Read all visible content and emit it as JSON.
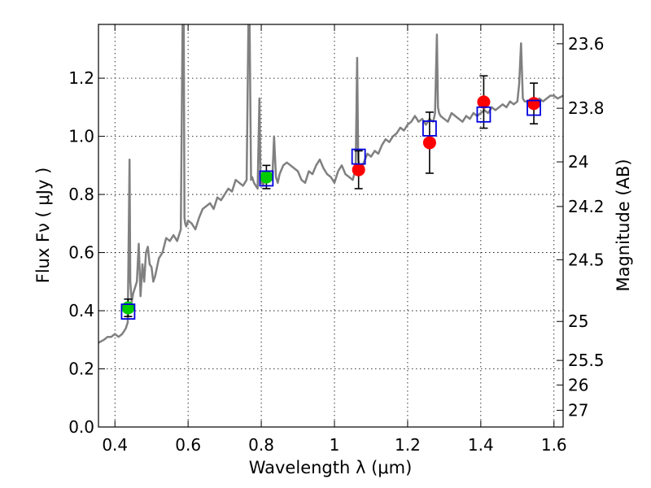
{
  "chart_data": {
    "type": "scatter",
    "xlabel": "Wavelength  λ (μm)",
    "ylabel": "Flux  Fν  ( μJy )",
    "y2label": "Magnitude (AB)",
    "xlim": [
      0.355,
      1.625
    ],
    "ylim": [
      0.0,
      1.385
    ],
    "grid": true,
    "x_ticks": [
      {
        "value": 0.4,
        "label": "0.4"
      },
      {
        "value": 0.6,
        "label": "0.6"
      },
      {
        "value": 0.8,
        "label": "0.8"
      },
      {
        "value": 1.0,
        "label": "1"
      },
      {
        "value": 1.2,
        "label": "1.2"
      },
      {
        "value": 1.4,
        "label": "1.4"
      },
      {
        "value": 1.6,
        "label": "1.6"
      }
    ],
    "y_ticks": [
      {
        "value": 0.0,
        "label": "0.0"
      },
      {
        "value": 0.2,
        "label": "0.2"
      },
      {
        "value": 0.4,
        "label": "0.4"
      },
      {
        "value": 0.6,
        "label": "0.6"
      },
      {
        "value": 0.8,
        "label": "0.8"
      },
      {
        "value": 1.0,
        "label": "1.0"
      },
      {
        "value": 1.2,
        "label": "1.2"
      }
    ],
    "y2_ticks": [
      {
        "mag": 23.6,
        "label": "23.6"
      },
      {
        "mag": 23.8,
        "label": "23.8"
      },
      {
        "mag": 24.0,
        "label": "24"
      },
      {
        "mag": 24.2,
        "label": "24.2"
      },
      {
        "mag": 24.5,
        "label": "24.5"
      },
      {
        "mag": 25.0,
        "label": "25"
      },
      {
        "mag": 25.5,
        "label": "25.5"
      },
      {
        "mag": 26.0,
        "label": "26"
      },
      {
        "mag": 27.0,
        "label": "27"
      }
    ],
    "series": [
      {
        "kind": "line",
        "color": "#808080",
        "x": [
          0.355,
          0.37,
          0.38,
          0.39,
          0.4,
          0.41,
          0.42,
          0.425,
          0.43,
          0.435,
          0.44,
          0.442,
          0.446,
          0.45,
          0.455,
          0.46,
          0.465,
          0.47,
          0.475,
          0.48,
          0.485,
          0.49,
          0.495,
          0.5,
          0.505,
          0.51,
          0.52,
          0.53,
          0.54,
          0.55,
          0.56,
          0.57,
          0.58,
          0.585,
          0.588,
          0.59,
          0.592,
          0.595,
          0.6,
          0.61,
          0.62,
          0.63,
          0.64,
          0.65,
          0.66,
          0.67,
          0.68,
          0.69,
          0.7,
          0.71,
          0.72,
          0.73,
          0.74,
          0.75,
          0.76,
          0.765,
          0.768,
          0.772,
          0.775,
          0.78,
          0.79,
          0.795,
          0.798,
          0.8,
          0.805,
          0.81,
          0.82,
          0.83,
          0.835,
          0.84,
          0.845,
          0.85,
          0.86,
          0.87,
          0.88,
          0.89,
          0.9,
          0.91,
          0.92,
          0.93,
          0.94,
          0.95,
          0.96,
          0.97,
          0.98,
          0.99,
          1.0,
          1.01,
          1.02,
          1.03,
          1.04,
          1.05,
          1.058,
          1.062,
          1.065,
          1.07,
          1.08,
          1.09,
          1.1,
          1.11,
          1.12,
          1.13,
          1.14,
          1.15,
          1.16,
          1.17,
          1.18,
          1.19,
          1.2,
          1.21,
          1.22,
          1.23,
          1.24,
          1.25,
          1.26,
          1.27,
          1.275,
          1.28,
          1.283,
          1.286,
          1.29,
          1.3,
          1.31,
          1.32,
          1.33,
          1.34,
          1.35,
          1.36,
          1.37,
          1.38,
          1.39,
          1.4,
          1.41,
          1.42,
          1.43,
          1.44,
          1.45,
          1.46,
          1.47,
          1.48,
          1.49,
          1.5,
          1.505,
          1.51,
          1.515,
          1.52,
          1.53,
          1.54,
          1.55,
          1.56,
          1.57,
          1.58,
          1.59,
          1.6,
          1.61,
          1.625
        ],
        "y": [
          0.29,
          0.3,
          0.31,
          0.31,
          0.32,
          0.31,
          0.32,
          0.33,
          0.34,
          0.36,
          0.92,
          0.5,
          0.43,
          0.46,
          0.48,
          0.5,
          0.63,
          0.45,
          0.56,
          0.5,
          0.6,
          0.62,
          0.56,
          0.55,
          0.5,
          0.52,
          0.58,
          0.6,
          0.65,
          0.64,
          0.66,
          0.64,
          0.68,
          1.4,
          1.4,
          0.72,
          0.7,
          0.69,
          0.71,
          0.7,
          0.68,
          0.72,
          0.75,
          0.76,
          0.77,
          0.75,
          0.79,
          0.78,
          0.8,
          0.82,
          0.81,
          0.85,
          0.84,
          0.83,
          0.85,
          1.4,
          1.4,
          0.85,
          0.86,
          0.84,
          0.82,
          1.13,
          0.84,
          0.85,
          0.83,
          0.86,
          0.87,
          0.85,
          1.0,
          0.86,
          0.84,
          0.87,
          0.9,
          0.91,
          0.9,
          0.89,
          0.88,
          0.85,
          0.84,
          0.88,
          0.87,
          0.9,
          0.92,
          0.89,
          0.87,
          0.86,
          0.84,
          0.88,
          0.9,
          0.87,
          0.86,
          0.85,
          0.89,
          1.27,
          0.92,
          0.88,
          0.91,
          0.94,
          0.93,
          0.95,
          0.94,
          0.97,
          0.99,
          0.98,
          1.0,
          1.01,
          1.03,
          1.02,
          1.04,
          1.05,
          1.07,
          1.05,
          1.06,
          1.04,
          1.06,
          1.05,
          1.08,
          1.35,
          1.1,
          1.08,
          1.07,
          1.06,
          1.05,
          1.08,
          1.07,
          1.06,
          1.05,
          1.07,
          1.06,
          1.08,
          1.07,
          1.08,
          1.09,
          1.08,
          1.1,
          1.09,
          1.1,
          1.11,
          1.1,
          1.12,
          1.11,
          1.12,
          1.18,
          1.32,
          1.13,
          1.12,
          1.12,
          1.11,
          1.12,
          1.13,
          1.12,
          1.13,
          1.14,
          1.14,
          1.13,
          1.14
        ]
      },
      {
        "kind": "points",
        "color": "#00cc00",
        "x": [
          0.436,
          0.814
        ],
        "y": [
          0.41,
          0.86
        ],
        "yerr": [
          0.03,
          0.04
        ]
      },
      {
        "kind": "points",
        "color": "#ff0000",
        "x": [
          1.066,
          1.26,
          1.408,
          1.545
        ],
        "y": [
          0.885,
          0.978,
          1.118,
          1.113
        ],
        "yerr": [
          0.065,
          0.105,
          0.09,
          0.07
        ]
      },
      {
        "kind": "boxes",
        "color": "#0000dd",
        "x": [
          0.436,
          0.814,
          1.066,
          1.26,
          1.408,
          1.545
        ],
        "y": [
          0.397,
          0.855,
          0.93,
          1.027,
          1.075,
          1.098
        ]
      }
    ]
  }
}
